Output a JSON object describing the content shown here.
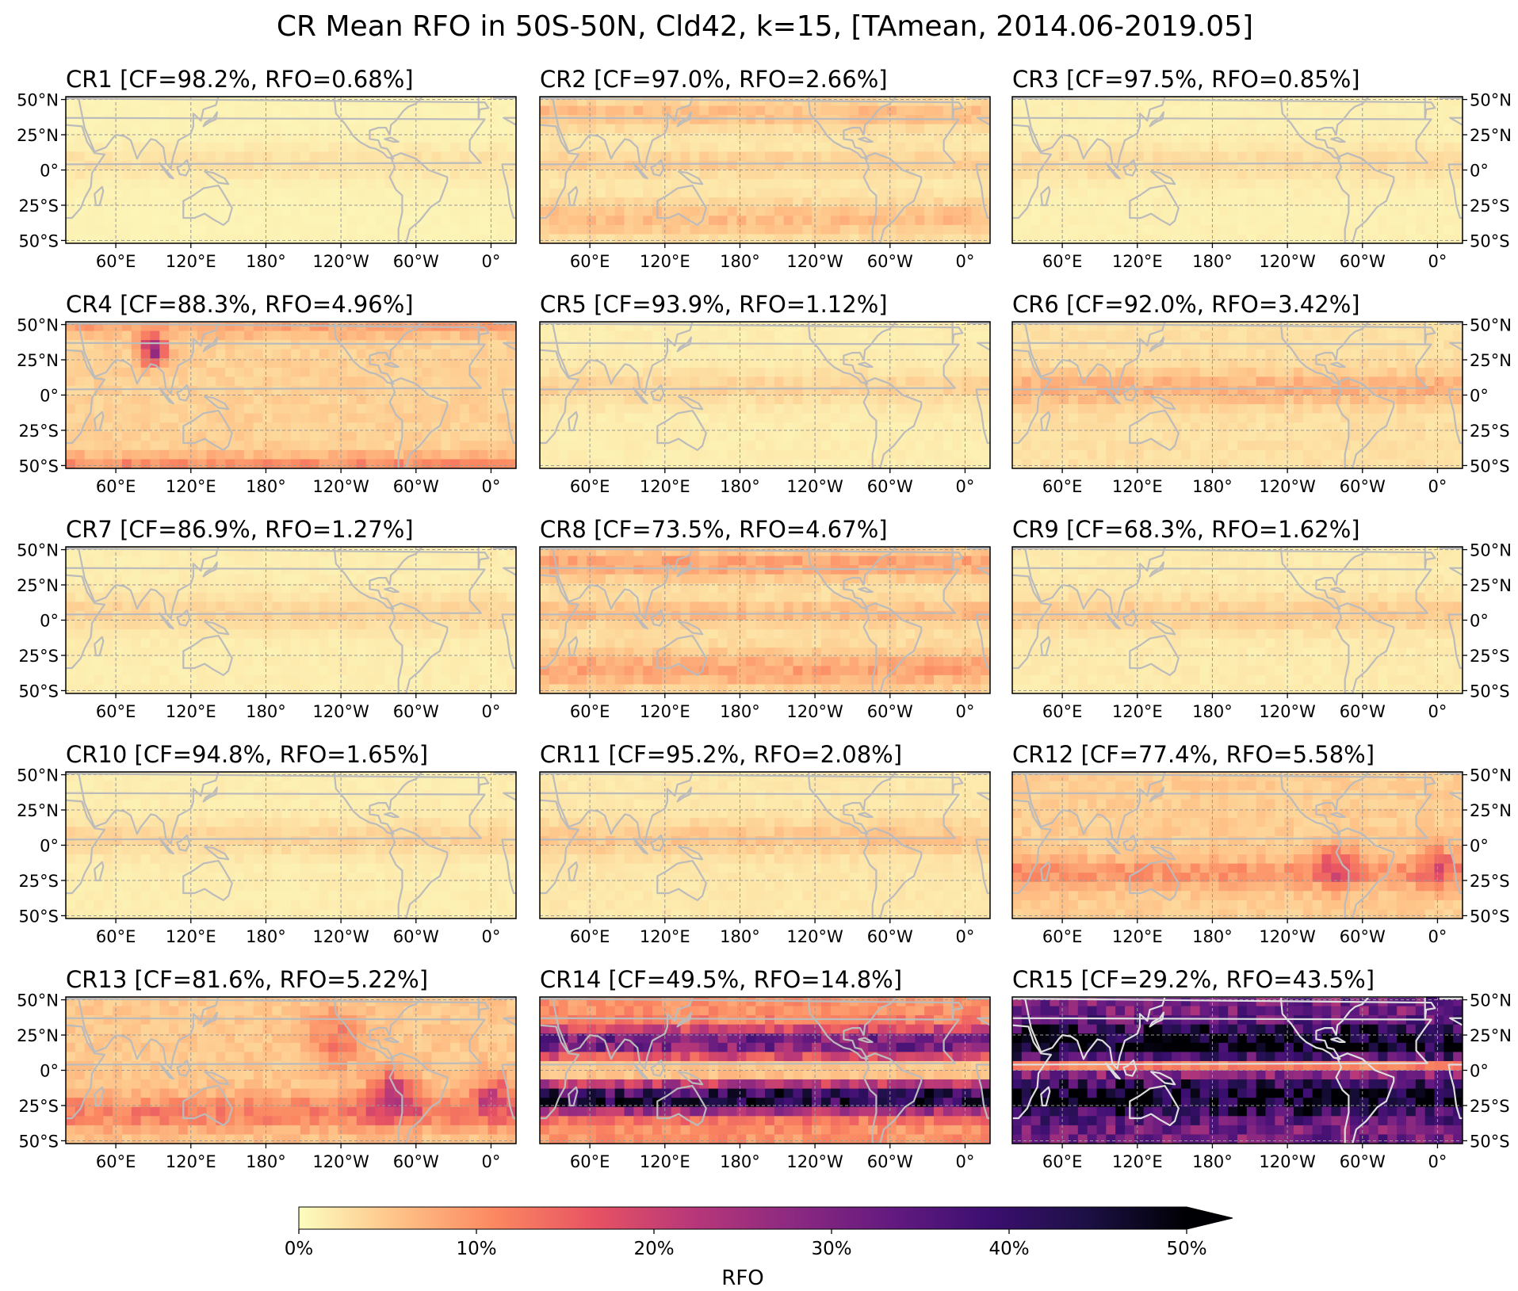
{
  "figure": {
    "title": "CR Mean RFO in 50S-50N, Cld42, k=15, [TAmean, 2014.06-2019.05]"
  },
  "axes": {
    "x_ticks": [
      {
        "lon": 60,
        "label": "60°E"
      },
      {
        "lon": 120,
        "label": "120°E"
      },
      {
        "lon": 180,
        "label": "180°"
      },
      {
        "lon": 240,
        "label": "120°W"
      },
      {
        "lon": 300,
        "label": "60°W"
      },
      {
        "lon": 360,
        "label": "0°"
      }
    ],
    "y_ticks": [
      {
        "lat": 50,
        "label": "50°N"
      },
      {
        "lat": 25,
        "label": "25°N"
      },
      {
        "lat": 0,
        "label": "0°"
      },
      {
        "lat": -25,
        "label": "25°S"
      },
      {
        "lat": -50,
        "label": "50°S"
      }
    ],
    "lon_range": [
      20,
      380
    ],
    "lat_range": [
      -52,
      52
    ]
  },
  "colorbar": {
    "label": "RFO",
    "ticks": [
      {
        "value": 0,
        "label": "0%"
      },
      {
        "value": 10,
        "label": "10%"
      },
      {
        "value": 20,
        "label": "20%"
      },
      {
        "value": 30,
        "label": "30%"
      },
      {
        "value": 40,
        "label": "40%"
      },
      {
        "value": 50,
        "label": "50%"
      }
    ],
    "range": [
      0,
      50
    ],
    "extend": "max",
    "colormap": "magma_r",
    "stops": [
      "#fcfdbf",
      "#fec287",
      "#fb8761",
      "#e75263",
      "#b73779",
      "#8c2981",
      "#641a80",
      "#3b0f70",
      "#1c1044",
      "#000004"
    ]
  },
  "land_outline_color": "#bbbbbb",
  "chart_data": {
    "type": "heatmap",
    "panels": [
      {
        "id": "CR1",
        "title": "CR1 [CF=98.2%, RFO=0.68%]",
        "cf": 98.2,
        "rfo": 0.68,
        "level": 2
      },
      {
        "id": "CR2",
        "title": "CR2 [CF=97.0%, RFO=2.66%]",
        "cf": 97.0,
        "rfo": 2.66,
        "level": 5
      },
      {
        "id": "CR3",
        "title": "CR3 [CF=97.5%, RFO=0.85%]",
        "cf": 97.5,
        "rfo": 0.85,
        "level": 2.5
      },
      {
        "id": "CR4",
        "title": "CR4 [CF=88.3%, RFO=4.96%]",
        "cf": 88.3,
        "rfo": 4.96,
        "level": 7
      },
      {
        "id": "CR5",
        "title": "CR5 [CF=93.9%, RFO=1.12%]",
        "cf": 93.9,
        "rfo": 1.12,
        "level": 3
      },
      {
        "id": "CR6",
        "title": "CR6 [CF=92.0%, RFO=3.42%]",
        "cf": 92.0,
        "rfo": 3.42,
        "level": 5.5
      },
      {
        "id": "CR7",
        "title": "CR7 [CF=86.9%, RFO=1.27%]",
        "cf": 86.9,
        "rfo": 1.27,
        "level": 3
      },
      {
        "id": "CR8",
        "title": "CR8 [CF=73.5%, RFO=4.67%]",
        "cf": 73.5,
        "rfo": 4.67,
        "level": 7
      },
      {
        "id": "CR9",
        "title": "CR9 [CF=68.3%, RFO=1.62%]",
        "cf": 68.3,
        "rfo": 1.62,
        "level": 3.5
      },
      {
        "id": "CR10",
        "title": "CR10 [CF=94.8%, RFO=1.65%]",
        "cf": 94.8,
        "rfo": 1.65,
        "level": 3
      },
      {
        "id": "CR11",
        "title": "CR11 [CF=95.2%, RFO=2.08%]",
        "cf": 95.2,
        "rfo": 2.08,
        "level": 4
      },
      {
        "id": "CR12",
        "title": "CR12 [CF=77.4%, RFO=5.58%]",
        "cf": 77.4,
        "rfo": 5.58,
        "level": 9
      },
      {
        "id": "CR13",
        "title": "CR13 [CF=81.6%, RFO=5.22%]",
        "cf": 81.6,
        "rfo": 5.22,
        "level": 10
      },
      {
        "id": "CR14",
        "title": "CR14 [CF=49.5%, RFO=14.8%]",
        "cf": 49.5,
        "rfo": 14.8,
        "level": 25
      },
      {
        "id": "CR15",
        "title": "CR15 [CF=29.2%, RFO=43.5%]",
        "cf": 29.2,
        "rfo": 43.5,
        "level": 44
      }
    ]
  }
}
